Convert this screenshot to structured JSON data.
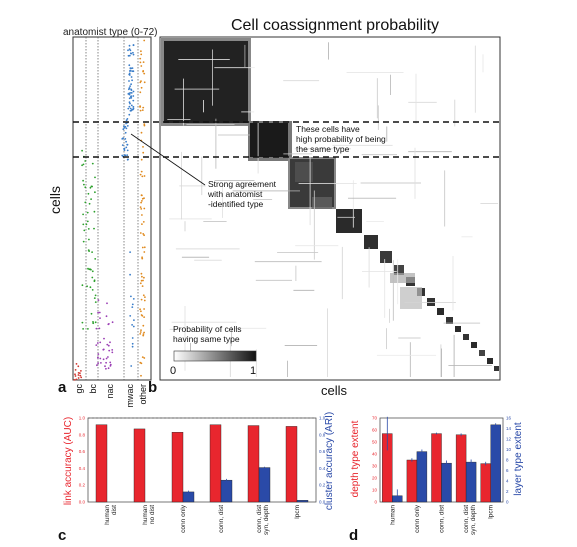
{
  "panel_labels": {
    "a": "a",
    "b": "b",
    "c": "c",
    "d": "d"
  },
  "panel_a": {
    "title": "anatomist type (0-72)",
    "ylabel": "cells",
    "columns": [
      "gc",
      "bc",
      "nac",
      "mwac",
      "other"
    ],
    "colors": {
      "gc": "#d0342c",
      "bc": "#2ca02c",
      "nac": "#9b3fb5",
      "mwac": "#3a7dc9",
      "other": "#e08a1e"
    }
  },
  "panel_b": {
    "title": "Cell coassignment probability",
    "xlabel": "cells",
    "annotation_high": "These cells have\nhigh probability of being\nthe same type",
    "annotation_agree": "Strong agreement\nwith anatomist\n-identified type",
    "colorbar_label": "Probability of cells\nhaving same type",
    "colorbar_min": "0",
    "colorbar_max": "1"
  },
  "chart_data": [
    {
      "panel": "c",
      "type": "bar",
      "categories": [
        "human\ndist",
        "human\nno dist",
        "conn only",
        "conn, dist",
        "conn, dist\nsyn, depth",
        "lpcm"
      ],
      "ylabel_left": "link accuracy (AUC)",
      "ylabel_right": "cluster accuracy (ARI)",
      "ylim": [
        0,
        1.0
      ],
      "left_ticks": [
        "0.0",
        "0.2",
        "0.4",
        "0.6",
        "0.8",
        "1.0"
      ],
      "right_ticks": [
        "0.0",
        "0.2",
        "0.4",
        "0.6",
        "0.8",
        "1.0"
      ],
      "series": [
        {
          "name": "link accuracy (AUC)",
          "color": "#e8262e",
          "values": [
            0.92,
            0.87,
            0.83,
            0.92,
            0.91,
            0.9
          ],
          "err": [
            0.0,
            0.0,
            0.0,
            0.0,
            0.0,
            0.0
          ]
        },
        {
          "name": "cluster accuracy (ARI)",
          "color": "#2a4aa8",
          "values": [
            null,
            null,
            0.12,
            0.26,
            0.41,
            0.02
          ],
          "err": [
            0,
            0,
            0.015,
            0.015,
            0.01,
            0.0
          ]
        }
      ],
      "reference_line": 1.0
    },
    {
      "panel": "d",
      "type": "bar",
      "categories": [
        "human",
        "conn only",
        "conn, dist",
        "conn, dist\nsyn, depth",
        "lpcm"
      ],
      "ylabel_left": "depth type extent",
      "ylabel_right": "layer type extent",
      "left_ylim": [
        0,
        70
      ],
      "right_ylim": [
        0,
        16
      ],
      "left_ticks": [
        "0",
        "10",
        "20",
        "30",
        "40",
        "50",
        "60",
        "70"
      ],
      "right_ticks": [
        "0",
        "2",
        "4",
        "6",
        "8",
        "10",
        "12",
        "14",
        "16"
      ],
      "series": [
        {
          "name": "depth type extent",
          "color": "#e8262e",
          "values": [
            57,
            35,
            57,
            56,
            32
          ],
          "err": [
            14,
            1.5,
            0.8,
            1.2,
            1.5
          ]
        },
        {
          "name": "layer type extent",
          "color": "#2a4aa8",
          "values": [
            1.2,
            9.6,
            7.4,
            7.6,
            14.7
          ],
          "err": [
            1.2,
            0.4,
            0.5,
            0.5,
            0.3
          ]
        }
      ]
    }
  ]
}
